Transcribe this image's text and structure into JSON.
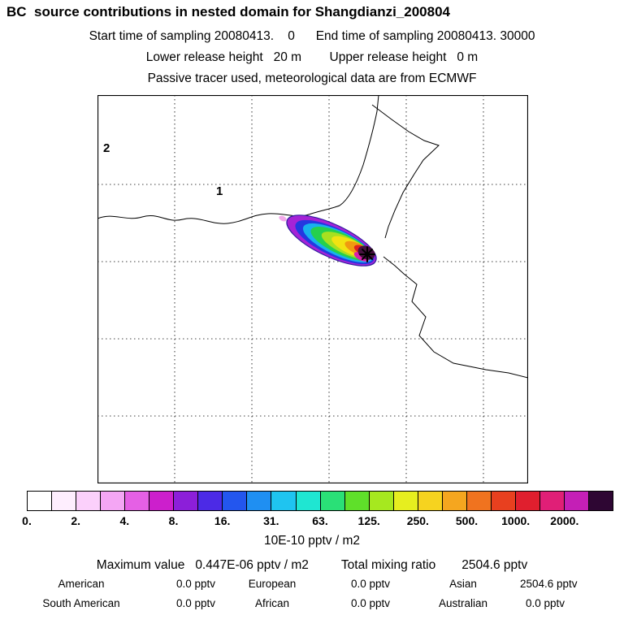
{
  "title": "BC  source contributions in nested domain for Shangdianzi_200804",
  "header": {
    "sampling_line": "Start time of sampling 20080413.    0      End time of sampling 20080413. 30000",
    "release_line": "Lower release height   20 m        Upper release height   0 m",
    "tracer_line": "Passive tracer used, meteorological data are from ECMWF"
  },
  "map": {
    "domain_label_outer": "2",
    "domain_label_inner": "1"
  },
  "colorbar": {
    "unit_label": "10E-10 pptv / m2",
    "tick_labels": [
      "0.",
      "2.",
      "4.",
      "8.",
      "16.",
      "31.",
      "63.",
      "125.",
      "250.",
      "500.",
      "1000.",
      "2000."
    ],
    "cell_colors": [
      "#ffffff",
      "#feeefe",
      "#fbd0fb",
      "#f4a6f4",
      "#e560e5",
      "#cc1fcc",
      "#8c1fd9",
      "#4c2ae6",
      "#2356ee",
      "#1f8ff2",
      "#1fc4f0",
      "#1fe6d2",
      "#2ae077",
      "#5fe02a",
      "#a6e81f",
      "#e6ee1f",
      "#f6d31f",
      "#f5a61f",
      "#f0731f",
      "#e8401f",
      "#e01f2e",
      "#e01f77",
      "#c41fb6",
      "#2e0633"
    ]
  },
  "stats": {
    "max_label": "Maximum value",
    "max_value": "0.447E-06 pptv / m2",
    "total_label": "Total mixing ratio",
    "total_value": "2504.6 pptv"
  },
  "contributions": {
    "rows": [
      [
        {
          "label": "American",
          "value": "0.0 pptv"
        },
        {
          "label": "European",
          "value": "0.0 pptv"
        },
        {
          "label": "Asian",
          "value": "2504.6 pptv"
        }
      ],
      [
        {
          "label": "South American",
          "value": "0.0 pptv"
        },
        {
          "label": "African",
          "value": "0.0 pptv"
        },
        {
          "label": "Australian",
          "value": "0.0 pptv"
        }
      ]
    ]
  },
  "chart_data": {
    "type": "heatmap",
    "title": "BC  source contributions in nested domain for Shangdianzi_200804",
    "subtitle": [
      "Start time of sampling 20080413. 0",
      "End time of sampling 20080413. 30000",
      "Lower release height 20 m",
      "Upper release height 0 m",
      "Passive tracer used, meteorological data are from ECMWF"
    ],
    "colorbar_levels": [
      0,
      2,
      4,
      8,
      16,
      31,
      63,
      125,
      250,
      500,
      1000,
      2000
    ],
    "colorbar_unit": "10E-10 pptv / m2",
    "legend_position": "bottom",
    "grid": "dashed",
    "nested_domain_labels": [
      "2",
      "1"
    ],
    "receptor_marker": "asterisk at plume maximum (Shangdianzi)",
    "maximum_value_pptv_per_m2": "0.447E-06",
    "total_mixing_ratio_pptv": 2504.6,
    "contributions_pptv": {
      "American": 0.0,
      "European": 0.0,
      "Asian": 2504.6,
      "South American": 0.0,
      "African": 0.0,
      "Australian": 0.0
    }
  }
}
